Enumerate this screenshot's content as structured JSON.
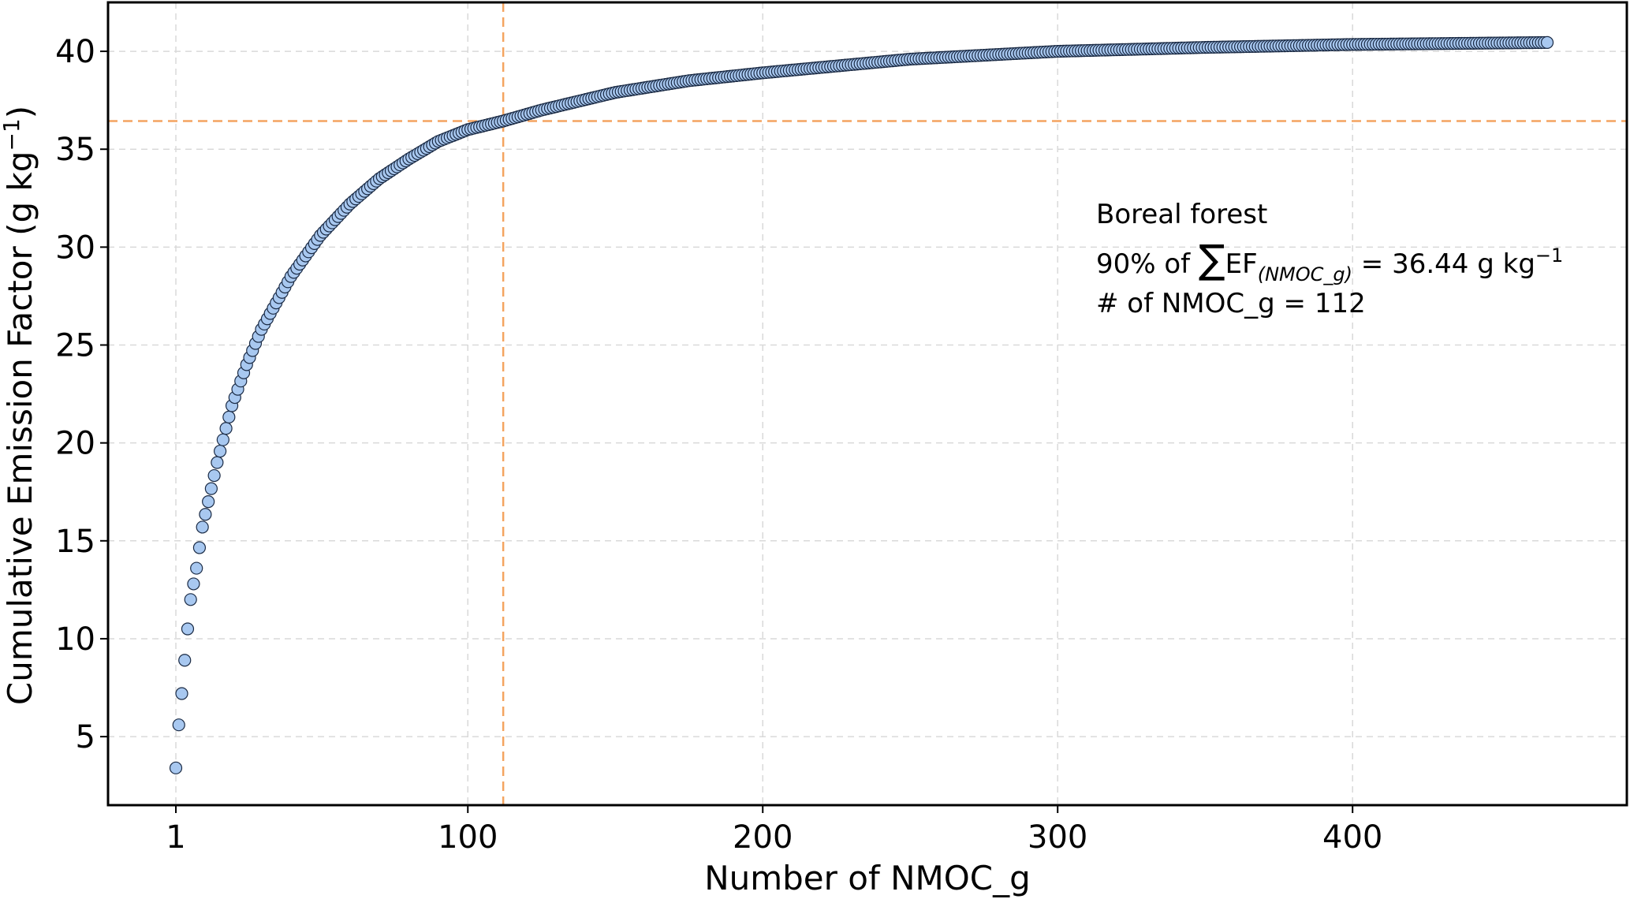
{
  "chart_data": {
    "type": "scatter",
    "xlabel": "Number of NMOC_g",
    "ylabel": {
      "text": "Cumulative Emission Factor (g kg",
      "sup": "−1",
      "close": ")"
    },
    "xlim": [
      -22,
      493
    ],
    "ylim": [
      1.5,
      42.5
    ],
    "x_ticks": [
      1,
      100,
      200,
      300,
      400
    ],
    "y_ticks": [
      5,
      10,
      15,
      20,
      25,
      30,
      35,
      40
    ],
    "grid": true,
    "point_color": "#a8c8f0",
    "point_edge_color": "#1a2a44",
    "reference_line_color": "#f4a460",
    "n_points": 466,
    "curve_anchors": [
      [
        1,
        3.4
      ],
      [
        2,
        5.6
      ],
      [
        3,
        7.2
      ],
      [
        4,
        8.9
      ],
      [
        5,
        10.5
      ],
      [
        6,
        12.0
      ],
      [
        8,
        13.6
      ],
      [
        10,
        15.7
      ],
      [
        12,
        17.0
      ],
      [
        15,
        19.0
      ],
      [
        20,
        21.9
      ],
      [
        25,
        24.0
      ],
      [
        30,
        25.8
      ],
      [
        40,
        28.5
      ],
      [
        50,
        30.6
      ],
      [
        60,
        32.2
      ],
      [
        70,
        33.5
      ],
      [
        80,
        34.5
      ],
      [
        90,
        35.4
      ],
      [
        100,
        36.0
      ],
      [
        112,
        36.44
      ],
      [
        125,
        37.0
      ],
      [
        150,
        37.9
      ],
      [
        175,
        38.5
      ],
      [
        200,
        38.9
      ],
      [
        250,
        39.6
      ],
      [
        300,
        40.0
      ],
      [
        350,
        40.2
      ],
      [
        400,
        40.35
      ],
      [
        466,
        40.45
      ]
    ],
    "reference_lines": {
      "x": 112,
      "y": 36.44
    },
    "annotation": {
      "line1": "Boreal forest",
      "line2_prefix": "90% of ",
      "line2_sum": "∑",
      "line2_ef": "EF",
      "line2_sub": "(NMOC_g)",
      "line2_value": " = 36.44 g kg",
      "line2_sup": "−1",
      "line3": "# of NMOC_g = 112"
    }
  }
}
